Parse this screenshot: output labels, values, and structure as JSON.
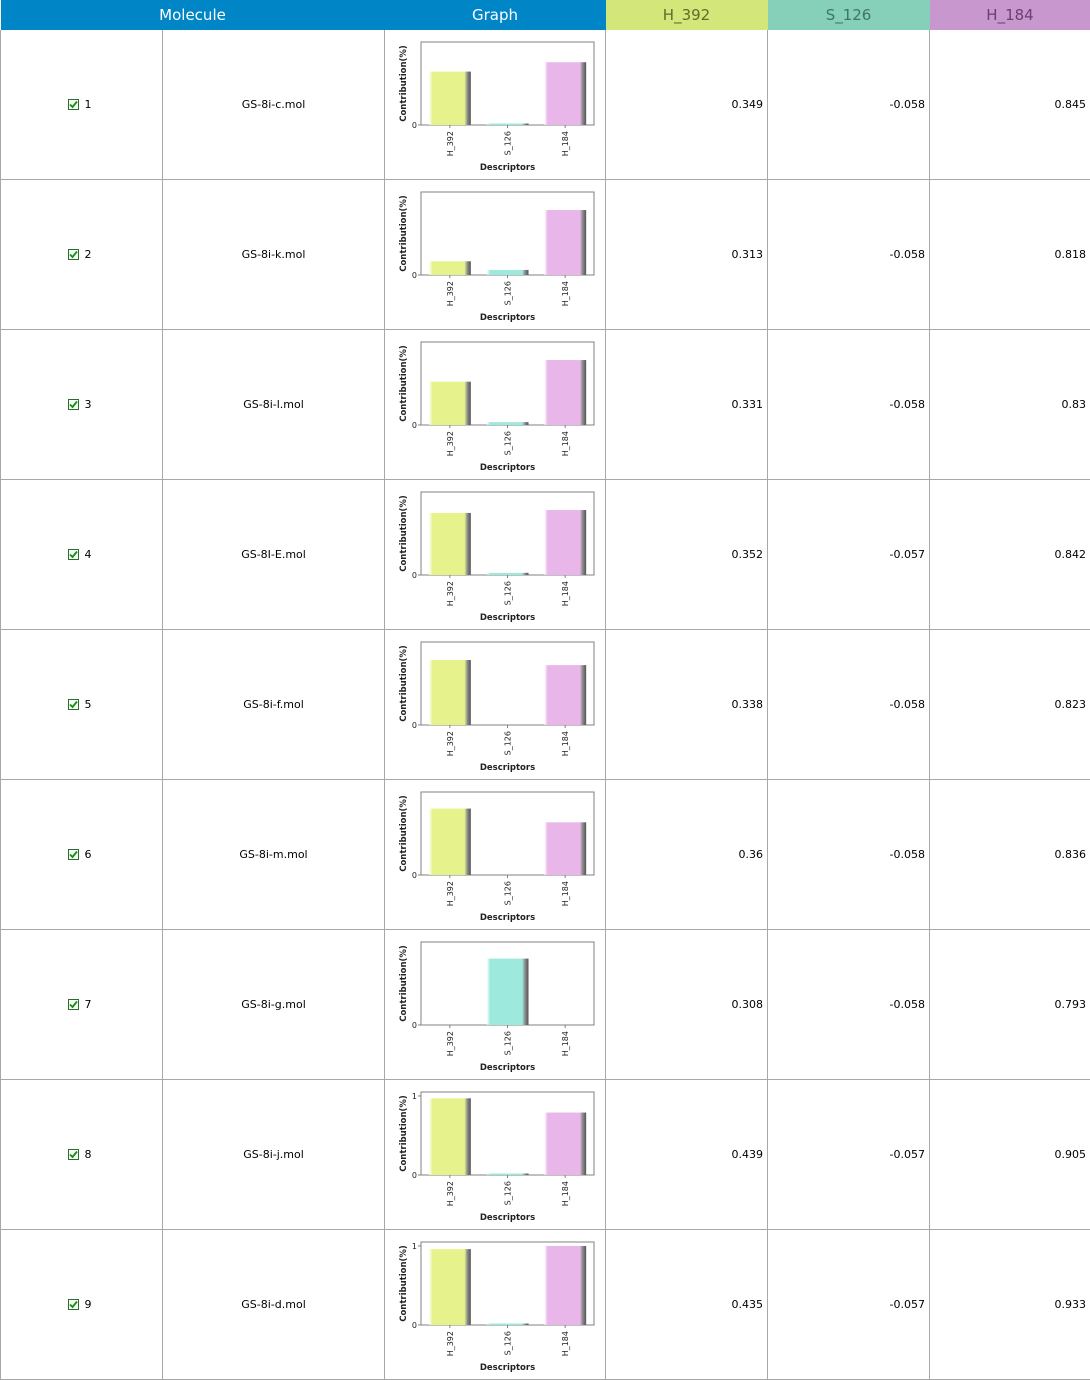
{
  "columns": {
    "molecule": {
      "label": "Molecule",
      "bg": "#0085c6",
      "fg": "#ffffff"
    },
    "graph": {
      "label": "Graph",
      "bg": "#0085c6",
      "fg": "#ffffff"
    },
    "d1": {
      "label": "H_392",
      "bg": "#d3e67a",
      "fg": "#5d6d2a"
    },
    "d2": {
      "label": "S_126",
      "bg": "#86cfb8",
      "fg": "#3d7567"
    },
    "d3": {
      "label": "H_184",
      "bg": "#c897cd",
      "fg": "#6b3f70"
    }
  },
  "chart_style": {
    "ylabel": "Contribution(%)",
    "xlabel": "Descriptors",
    "categories": [
      "H_392",
      "S_126",
      "H_184"
    ],
    "colors": [
      "#e6f28c",
      "#9ee9de",
      "#e8b6e8"
    ],
    "zero_tick": "0",
    "one_tick": "1"
  },
  "rows": [
    {
      "num": "1",
      "mol": "GS-8i-c.mol",
      "v1": "0.349",
      "v2": "-0.058",
      "v3": "0.845",
      "checked": true,
      "chart_data": {
        "type": "bar",
        "categories": [
          "H_392",
          "S_126",
          "H_184"
        ],
        "values": [
          0.74,
          0.01,
          0.87
        ],
        "ylim": [
          0,
          1.15
        ],
        "ytick_one": false
      }
    },
    {
      "num": "2",
      "mol": "GS-8i-k.mol",
      "v1": "0.313",
      "v2": "-0.058",
      "v3": "0.818",
      "checked": true,
      "chart_data": {
        "type": "bar",
        "categories": [
          "H_392",
          "S_126",
          "H_184"
        ],
        "values": [
          0.19,
          0.07,
          0.9
        ],
        "ylim": [
          0,
          1.15
        ],
        "ytick_one": false
      }
    },
    {
      "num": "3",
      "mol": "GS-8i-l.mol",
      "v1": "0.331",
      "v2": "-0.058",
      "v3": "0.83",
      "checked": true,
      "chart_data": {
        "type": "bar",
        "categories": [
          "H_392",
          "S_126",
          "H_184"
        ],
        "values": [
          0.6,
          0.04,
          0.9
        ],
        "ylim": [
          0,
          1.15
        ],
        "ytick_one": false
      }
    },
    {
      "num": "4",
      "mol": "GS-8I-E.mol",
      "v1": "0.352",
      "v2": "-0.057",
      "v3": "0.842",
      "checked": true,
      "chart_data": {
        "type": "bar",
        "categories": [
          "H_392",
          "S_126",
          "H_184"
        ],
        "values": [
          0.86,
          0.03,
          0.9
        ],
        "ylim": [
          0,
          1.15
        ],
        "ytick_one": false
      }
    },
    {
      "num": "5",
      "mol": "GS-8i-f.mol",
      "v1": "0.338",
      "v2": "-0.058",
      "v3": "0.823",
      "checked": true,
      "chart_data": {
        "type": "bar",
        "categories": [
          "H_392",
          "S_126",
          "H_184"
        ],
        "values": [
          0.9,
          0.0,
          0.83
        ],
        "ylim": [
          0,
          1.15
        ],
        "ytick_one": false
      }
    },
    {
      "num": "6",
      "mol": "GS-8i-m.mol",
      "v1": "0.36",
      "v2": "-0.058",
      "v3": "0.836",
      "checked": true,
      "chart_data": {
        "type": "bar",
        "categories": [
          "H_392",
          "S_126",
          "H_184"
        ],
        "values": [
          0.92,
          0.0,
          0.73
        ],
        "ylim": [
          0,
          1.15
        ],
        "ytick_one": false
      }
    },
    {
      "num": "7",
      "mol": "GS-8i-g.mol",
      "v1": "0.308",
      "v2": "-0.058",
      "v3": "0.793",
      "checked": true,
      "chart_data": {
        "type": "bar",
        "categories": [
          "H_392",
          "S_126",
          "H_184"
        ],
        "values": [
          0.0,
          0.92,
          0.0
        ],
        "ylim": [
          0,
          1.15
        ],
        "ytick_one": false
      }
    },
    {
      "num": "8",
      "mol": "GS-8i-j.mol",
      "v1": "0.439",
      "v2": "-0.057",
      "v3": "0.905",
      "checked": true,
      "chart_data": {
        "type": "bar",
        "categories": [
          "H_392",
          "S_126",
          "H_184"
        ],
        "values": [
          0.97,
          0.01,
          0.79
        ],
        "ylim": [
          0,
          1.05
        ],
        "ytick_one": true
      }
    },
    {
      "num": "9",
      "mol": "GS-8i-d.mol",
      "v1": "0.435",
      "v2": "-0.057",
      "v3": "0.933",
      "checked": true,
      "chart_data": {
        "type": "bar",
        "categories": [
          "H_392",
          "S_126",
          "H_184"
        ],
        "values": [
          0.96,
          0.01,
          1.0
        ],
        "ylim": [
          0,
          1.05
        ],
        "ytick_one": true
      }
    }
  ]
}
